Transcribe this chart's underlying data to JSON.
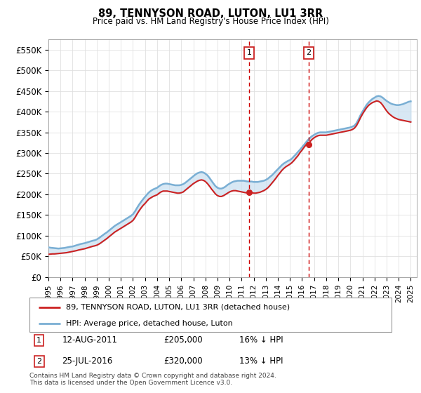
{
  "title": "89, TENNYSON ROAD, LUTON, LU1 3RR",
  "subtitle": "Price paid vs. HM Land Registry's House Price Index (HPI)",
  "ylabel_ticks": [
    "£0",
    "£50K",
    "£100K",
    "£150K",
    "£200K",
    "£250K",
    "£300K",
    "£350K",
    "£400K",
    "£450K",
    "£500K",
    "£550K"
  ],
  "ytick_values": [
    0,
    50000,
    100000,
    150000,
    200000,
    250000,
    300000,
    350000,
    400000,
    450000,
    500000,
    550000
  ],
  "ylim": [
    0,
    575000
  ],
  "xlim_start": 1995.0,
  "xlim_end": 2025.5,
  "hpi_line_color": "#7aafd4",
  "price_line_color": "#cc2222",
  "fill_color": "#c8dff0",
  "vline_color": "#cc0000",
  "marker1_year": 2011.62,
  "marker2_year": 2016.55,
  "sale1_price_val": 205000,
  "sale2_price_val": 320000,
  "legend_label1": "89, TENNYSON ROAD, LUTON, LU1 3RR (detached house)",
  "legend_label2": "HPI: Average price, detached house, Luton",
  "sale1_date": "12-AUG-2011",
  "sale1_price": "£205,000",
  "sale1_hpi": "16% ↓ HPI",
  "sale2_date": "25-JUL-2016",
  "sale2_price": "£320,000",
  "sale2_hpi": "13% ↓ HPI",
  "footer": "Contains HM Land Registry data © Crown copyright and database right 2024.\nThis data is licensed under the Open Government Licence v3.0.",
  "hpi_data": [
    [
      1995.0,
      72000
    ],
    [
      1995.17,
      71000
    ],
    [
      1995.33,
      70500
    ],
    [
      1995.5,
      70000
    ],
    [
      1995.67,
      69500
    ],
    [
      1995.83,
      69000
    ],
    [
      1996.0,
      69500
    ],
    [
      1996.17,
      70000
    ],
    [
      1996.33,
      70500
    ],
    [
      1996.5,
      71500
    ],
    [
      1996.67,
      72500
    ],
    [
      1996.83,
      73500
    ],
    [
      1997.0,
      74000
    ],
    [
      1997.17,
      75500
    ],
    [
      1997.33,
      77000
    ],
    [
      1997.5,
      78500
    ],
    [
      1997.67,
      80000
    ],
    [
      1997.83,
      81000
    ],
    [
      1998.0,
      82000
    ],
    [
      1998.17,
      83500
    ],
    [
      1998.33,
      85000
    ],
    [
      1998.5,
      86500
    ],
    [
      1998.67,
      88000
    ],
    [
      1998.83,
      89000
    ],
    [
      1999.0,
      91000
    ],
    [
      1999.17,
      94000
    ],
    [
      1999.33,
      97500
    ],
    [
      1999.5,
      101000
    ],
    [
      1999.67,
      105000
    ],
    [
      1999.83,
      108000
    ],
    [
      2000.0,
      112000
    ],
    [
      2000.17,
      116000
    ],
    [
      2000.33,
      120000
    ],
    [
      2000.5,
      124000
    ],
    [
      2000.67,
      127000
    ],
    [
      2000.83,
      130000
    ],
    [
      2001.0,
      133000
    ],
    [
      2001.17,
      136000
    ],
    [
      2001.33,
      139000
    ],
    [
      2001.5,
      142000
    ],
    [
      2001.67,
      145000
    ],
    [
      2001.83,
      148000
    ],
    [
      2002.0,
      152000
    ],
    [
      2002.17,
      159000
    ],
    [
      2002.33,
      167000
    ],
    [
      2002.5,
      175000
    ],
    [
      2002.67,
      182000
    ],
    [
      2002.83,
      188000
    ],
    [
      2003.0,
      194000
    ],
    [
      2003.17,
      200000
    ],
    [
      2003.33,
      205000
    ],
    [
      2003.5,
      209000
    ],
    [
      2003.67,
      212000
    ],
    [
      2003.83,
      214000
    ],
    [
      2004.0,
      216000
    ],
    [
      2004.17,
      220000
    ],
    [
      2004.33,
      223000
    ],
    [
      2004.5,
      225000
    ],
    [
      2004.67,
      226000
    ],
    [
      2004.83,
      226000
    ],
    [
      2005.0,
      225000
    ],
    [
      2005.17,
      224000
    ],
    [
      2005.33,
      223000
    ],
    [
      2005.5,
      222000
    ],
    [
      2005.67,
      222000
    ],
    [
      2005.83,
      222000
    ],
    [
      2006.0,
      223000
    ],
    [
      2006.17,
      225000
    ],
    [
      2006.33,
      228000
    ],
    [
      2006.5,
      232000
    ],
    [
      2006.67,
      236000
    ],
    [
      2006.83,
      240000
    ],
    [
      2007.0,
      244000
    ],
    [
      2007.17,
      248000
    ],
    [
      2007.33,
      251000
    ],
    [
      2007.5,
      253000
    ],
    [
      2007.67,
      254000
    ],
    [
      2007.83,
      253000
    ],
    [
      2008.0,
      250000
    ],
    [
      2008.17,
      246000
    ],
    [
      2008.33,
      240000
    ],
    [
      2008.5,
      233000
    ],
    [
      2008.67,
      226000
    ],
    [
      2008.83,
      220000
    ],
    [
      2009.0,
      216000
    ],
    [
      2009.17,
      214000
    ],
    [
      2009.33,
      214000
    ],
    [
      2009.5,
      216000
    ],
    [
      2009.67,
      219000
    ],
    [
      2009.83,
      223000
    ],
    [
      2010.0,
      226000
    ],
    [
      2010.17,
      229000
    ],
    [
      2010.33,
      231000
    ],
    [
      2010.5,
      232000
    ],
    [
      2010.67,
      233000
    ],
    [
      2010.83,
      233000
    ],
    [
      2011.0,
      233000
    ],
    [
      2011.17,
      233000
    ],
    [
      2011.33,
      232000
    ],
    [
      2011.5,
      231000
    ],
    [
      2011.67,
      231000
    ],
    [
      2011.83,
      231000
    ],
    [
      2012.0,
      230000
    ],
    [
      2012.17,
      230000
    ],
    [
      2012.33,
      230000
    ],
    [
      2012.5,
      231000
    ],
    [
      2012.67,
      232000
    ],
    [
      2012.83,
      233000
    ],
    [
      2013.0,
      235000
    ],
    [
      2013.17,
      238000
    ],
    [
      2013.33,
      242000
    ],
    [
      2013.5,
      246000
    ],
    [
      2013.67,
      251000
    ],
    [
      2013.83,
      256000
    ],
    [
      2014.0,
      261000
    ],
    [
      2014.17,
      266000
    ],
    [
      2014.33,
      271000
    ],
    [
      2014.5,
      275000
    ],
    [
      2014.67,
      278000
    ],
    [
      2014.83,
      281000
    ],
    [
      2015.0,
      283000
    ],
    [
      2015.17,
      287000
    ],
    [
      2015.33,
      292000
    ],
    [
      2015.5,
      297000
    ],
    [
      2015.67,
      303000
    ],
    [
      2015.83,
      308000
    ],
    [
      2016.0,
      314000
    ],
    [
      2016.17,
      320000
    ],
    [
      2016.33,
      326000
    ],
    [
      2016.5,
      332000
    ],
    [
      2016.67,
      337000
    ],
    [
      2016.83,
      341000
    ],
    [
      2017.0,
      344000
    ],
    [
      2017.17,
      347000
    ],
    [
      2017.33,
      349000
    ],
    [
      2017.5,
      350000
    ],
    [
      2017.67,
      350000
    ],
    [
      2017.83,
      350000
    ],
    [
      2018.0,
      350000
    ],
    [
      2018.17,
      351000
    ],
    [
      2018.33,
      352000
    ],
    [
      2018.5,
      353000
    ],
    [
      2018.67,
      354000
    ],
    [
      2018.83,
      355000
    ],
    [
      2019.0,
      356000
    ],
    [
      2019.17,
      357000
    ],
    [
      2019.33,
      358000
    ],
    [
      2019.5,
      359000
    ],
    [
      2019.67,
      360000
    ],
    [
      2019.83,
      361000
    ],
    [
      2020.0,
      362000
    ],
    [
      2020.17,
      364000
    ],
    [
      2020.33,
      366000
    ],
    [
      2020.5,
      372000
    ],
    [
      2020.67,
      381000
    ],
    [
      2020.83,
      391000
    ],
    [
      2021.0,
      400000
    ],
    [
      2021.17,
      408000
    ],
    [
      2021.33,
      416000
    ],
    [
      2021.5,
      422000
    ],
    [
      2021.67,
      427000
    ],
    [
      2021.83,
      431000
    ],
    [
      2022.0,
      434000
    ],
    [
      2022.17,
      437000
    ],
    [
      2022.33,
      438000
    ],
    [
      2022.5,
      437000
    ],
    [
      2022.67,
      434000
    ],
    [
      2022.83,
      430000
    ],
    [
      2023.0,
      426000
    ],
    [
      2023.17,
      423000
    ],
    [
      2023.33,
      420000
    ],
    [
      2023.5,
      418000
    ],
    [
      2023.67,
      417000
    ],
    [
      2023.83,
      416000
    ],
    [
      2024.0,
      416000
    ],
    [
      2024.17,
      417000
    ],
    [
      2024.33,
      418000
    ],
    [
      2024.5,
      420000
    ],
    [
      2024.67,
      422000
    ],
    [
      2024.83,
      424000
    ],
    [
      2025.0,
      425000
    ]
  ],
  "price_data": [
    [
      1995.0,
      55000
    ],
    [
      1995.17,
      55500
    ],
    [
      1995.33,
      56000
    ],
    [
      1995.5,
      56000
    ],
    [
      1995.67,
      56500
    ],
    [
      1995.83,
      57000
    ],
    [
      1996.0,
      57500
    ],
    [
      1996.17,
      58000
    ],
    [
      1996.33,
      58500
    ],
    [
      1996.5,
      59000
    ],
    [
      1996.67,
      60000
    ],
    [
      1996.83,
      61000
    ],
    [
      1997.0,
      62000
    ],
    [
      1997.17,
      63000
    ],
    [
      1997.33,
      64000
    ],
    [
      1997.5,
      65500
    ],
    [
      1997.67,
      66500
    ],
    [
      1997.83,
      67500
    ],
    [
      1998.0,
      68500
    ],
    [
      1998.17,
      70000
    ],
    [
      1998.33,
      71500
    ],
    [
      1998.5,
      73000
    ],
    [
      1998.67,
      74500
    ],
    [
      1998.83,
      75500
    ],
    [
      1999.0,
      77000
    ],
    [
      1999.17,
      79500
    ],
    [
      1999.33,
      82500
    ],
    [
      1999.5,
      86000
    ],
    [
      1999.67,
      89500
    ],
    [
      1999.83,
      93000
    ],
    [
      2000.0,
      97000
    ],
    [
      2000.17,
      101000
    ],
    [
      2000.33,
      105000
    ],
    [
      2000.5,
      109000
    ],
    [
      2000.67,
      112000
    ],
    [
      2000.83,
      115000
    ],
    [
      2001.0,
      118000
    ],
    [
      2001.17,
      121000
    ],
    [
      2001.33,
      124000
    ],
    [
      2001.5,
      127000
    ],
    [
      2001.67,
      130000
    ],
    [
      2001.83,
      133000
    ],
    [
      2002.0,
      137000
    ],
    [
      2002.17,
      144000
    ],
    [
      2002.33,
      152000
    ],
    [
      2002.5,
      160000
    ],
    [
      2002.67,
      167000
    ],
    [
      2002.83,
      173000
    ],
    [
      2003.0,
      178000
    ],
    [
      2003.17,
      184000
    ],
    [
      2003.33,
      189000
    ],
    [
      2003.5,
      192000
    ],
    [
      2003.67,
      195000
    ],
    [
      2003.83,
      197000
    ],
    [
      2004.0,
      199000
    ],
    [
      2004.17,
      203000
    ],
    [
      2004.33,
      206000
    ],
    [
      2004.5,
      208000
    ],
    [
      2004.67,
      208000
    ],
    [
      2004.83,
      208000
    ],
    [
      2005.0,
      207000
    ],
    [
      2005.17,
      206000
    ],
    [
      2005.33,
      205000
    ],
    [
      2005.5,
      204000
    ],
    [
      2005.67,
      203000
    ],
    [
      2005.83,
      203000
    ],
    [
      2006.0,
      204000
    ],
    [
      2006.17,
      206000
    ],
    [
      2006.33,
      210000
    ],
    [
      2006.5,
      214000
    ],
    [
      2006.67,
      218000
    ],
    [
      2006.83,
      222000
    ],
    [
      2007.0,
      226000
    ],
    [
      2007.17,
      229000
    ],
    [
      2007.33,
      232000
    ],
    [
      2007.5,
      234000
    ],
    [
      2007.67,
      235000
    ],
    [
      2007.83,
      234000
    ],
    [
      2008.0,
      231000
    ],
    [
      2008.17,
      226000
    ],
    [
      2008.33,
      220000
    ],
    [
      2008.5,
      213000
    ],
    [
      2008.67,
      207000
    ],
    [
      2008.83,
      201000
    ],
    [
      2009.0,
      197000
    ],
    [
      2009.17,
      195000
    ],
    [
      2009.33,
      195000
    ],
    [
      2009.5,
      197000
    ],
    [
      2009.67,
      200000
    ],
    [
      2009.83,
      203000
    ],
    [
      2010.0,
      206000
    ],
    [
      2010.17,
      208000
    ],
    [
      2010.33,
      209000
    ],
    [
      2010.5,
      209000
    ],
    [
      2010.67,
      208000
    ],
    [
      2010.83,
      207000
    ],
    [
      2011.0,
      206000
    ],
    [
      2011.17,
      205000
    ],
    [
      2011.33,
      204000
    ],
    [
      2011.5,
      204000
    ],
    [
      2011.62,
      205000
    ],
    [
      2011.67,
      204000
    ],
    [
      2011.83,
      204000
    ],
    [
      2012.0,
      203000
    ],
    [
      2012.17,
      203000
    ],
    [
      2012.33,
      204000
    ],
    [
      2012.5,
      205000
    ],
    [
      2012.67,
      207000
    ],
    [
      2012.83,
      209000
    ],
    [
      2013.0,
      212000
    ],
    [
      2013.17,
      216000
    ],
    [
      2013.33,
      221000
    ],
    [
      2013.5,
      227000
    ],
    [
      2013.67,
      233000
    ],
    [
      2013.83,
      239000
    ],
    [
      2014.0,
      246000
    ],
    [
      2014.17,
      252000
    ],
    [
      2014.33,
      258000
    ],
    [
      2014.5,
      263000
    ],
    [
      2014.67,
      267000
    ],
    [
      2014.83,
      270000
    ],
    [
      2015.0,
      273000
    ],
    [
      2015.17,
      277000
    ],
    [
      2015.33,
      282000
    ],
    [
      2015.5,
      288000
    ],
    [
      2015.67,
      294000
    ],
    [
      2015.83,
      301000
    ],
    [
      2016.0,
      307000
    ],
    [
      2016.17,
      314000
    ],
    [
      2016.33,
      320000
    ],
    [
      2016.5,
      326000
    ],
    [
      2016.55,
      320000
    ],
    [
      2016.67,
      328000
    ],
    [
      2016.83,
      333000
    ],
    [
      2017.0,
      337000
    ],
    [
      2017.17,
      340000
    ],
    [
      2017.33,
      342000
    ],
    [
      2017.5,
      343000
    ],
    [
      2017.67,
      343000
    ],
    [
      2017.83,
      343000
    ],
    [
      2018.0,
      343000
    ],
    [
      2018.17,
      344000
    ],
    [
      2018.33,
      345000
    ],
    [
      2018.5,
      346000
    ],
    [
      2018.67,
      347000
    ],
    [
      2018.83,
      348000
    ],
    [
      2019.0,
      349000
    ],
    [
      2019.17,
      350000
    ],
    [
      2019.33,
      351000
    ],
    [
      2019.5,
      352000
    ],
    [
      2019.67,
      353000
    ],
    [
      2019.83,
      354000
    ],
    [
      2020.0,
      355000
    ],
    [
      2020.17,
      357000
    ],
    [
      2020.33,
      360000
    ],
    [
      2020.5,
      366000
    ],
    [
      2020.67,
      375000
    ],
    [
      2020.83,
      385000
    ],
    [
      2021.0,
      394000
    ],
    [
      2021.17,
      402000
    ],
    [
      2021.33,
      409000
    ],
    [
      2021.5,
      415000
    ],
    [
      2021.67,
      419000
    ],
    [
      2021.83,
      422000
    ],
    [
      2022.0,
      424000
    ],
    [
      2022.17,
      426000
    ],
    [
      2022.33,
      425000
    ],
    [
      2022.5,
      422000
    ],
    [
      2022.67,
      416000
    ],
    [
      2022.83,
      409000
    ],
    [
      2023.0,
      402000
    ],
    [
      2023.17,
      396000
    ],
    [
      2023.33,
      392000
    ],
    [
      2023.5,
      388000
    ],
    [
      2023.67,
      385000
    ],
    [
      2023.83,
      383000
    ],
    [
      2024.0,
      381000
    ],
    [
      2024.17,
      380000
    ],
    [
      2024.33,
      379000
    ],
    [
      2024.5,
      378000
    ],
    [
      2024.67,
      377000
    ],
    [
      2024.83,
      376000
    ],
    [
      2025.0,
      375000
    ]
  ]
}
